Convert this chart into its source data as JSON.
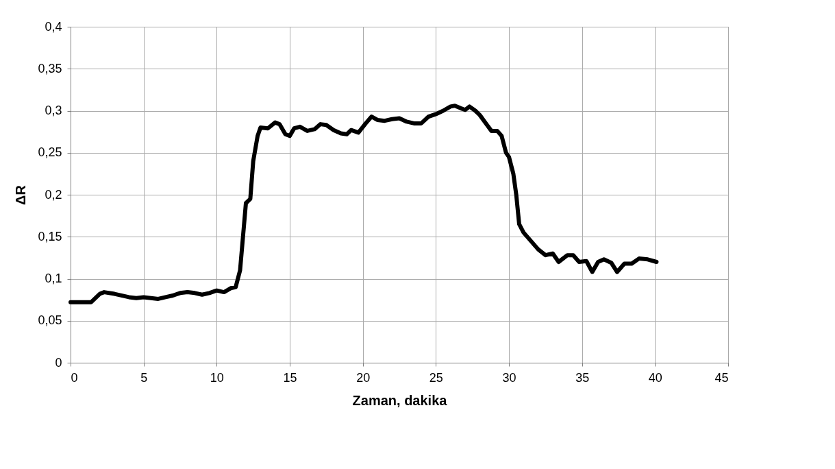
{
  "chart_data": {
    "type": "line",
    "xlabel": "Zaman, dakika",
    "ylabel": "ΔR",
    "x": [
      0,
      1.4,
      2,
      2.3,
      3,
      4,
      4.5,
      5,
      5.5,
      6,
      6.5,
      7,
      7.5,
      8,
      8.5,
      9,
      9.5,
      10,
      10.5,
      11,
      11.3,
      11.6,
      11.8,
      12,
      12.3,
      12.5,
      12.8,
      13,
      13.5,
      14,
      14.3,
      14.7,
      15,
      15.3,
      15.7,
      16.2,
      16.7,
      17.1,
      17.5,
      18,
      18.5,
      18.9,
      19.2,
      19.7,
      20.2,
      20.6,
      21,
      21.5,
      22,
      22.5,
      23,
      23.5,
      24,
      24.5,
      25,
      25.5,
      26,
      26.3,
      26.7,
      27,
      27.3,
      27.7,
      28,
      28.5,
      28.8,
      29.2,
      29.5,
      29.8,
      30,
      30.3,
      30.5,
      30.7,
      31,
      31.5,
      32,
      32.5,
      33,
      33.4,
      34,
      34.4,
      34.8,
      35.3,
      35.7,
      36.1,
      36.5,
      37,
      37.4,
      37.9,
      38.4,
      38.9,
      39.5,
      40.1
    ],
    "series": [
      {
        "color": "#000000",
        "values": [
          0.072,
          0.072,
          0.082,
          0.084,
          0.082,
          0.078,
          0.077,
          0.078,
          0.077,
          0.076,
          0.078,
          0.08,
          0.083,
          0.084,
          0.083,
          0.081,
          0.083,
          0.086,
          0.084,
          0.089,
          0.09,
          0.11,
          0.15,
          0.19,
          0.195,
          0.24,
          0.27,
          0.28,
          0.279,
          0.286,
          0.284,
          0.272,
          0.27,
          0.279,
          0.281,
          0.276,
          0.278,
          0.284,
          0.283,
          0.277,
          0.273,
          0.272,
          0.277,
          0.274,
          0.285,
          0.293,
          0.289,
          0.288,
          0.29,
          0.291,
          0.287,
          0.285,
          0.285,
          0.293,
          0.296,
          0.3,
          0.305,
          0.306,
          0.303,
          0.301,
          0.305,
          0.3,
          0.295,
          0.283,
          0.276,
          0.276,
          0.27,
          0.25,
          0.245,
          0.225,
          0.2,
          0.165,
          0.155,
          0.145,
          0.135,
          0.128,
          0.13,
          0.12,
          0.128,
          0.128,
          0.12,
          0.121,
          0.108,
          0.12,
          0.123,
          0.119,
          0.108,
          0.118,
          0.118,
          0.124,
          0.123,
          0.12
        ]
      }
    ],
    "xlim": [
      0,
      45
    ],
    "xticks": [
      0,
      5,
      10,
      15,
      20,
      25,
      30,
      35,
      40,
      45
    ],
    "ylim": [
      0,
      0.4
    ],
    "yticks": [
      0,
      {
        "value": 0.05,
        "label": "0,05"
      },
      {
        "value": 0.1,
        "label": "0,1"
      },
      {
        "value": 0.15,
        "label": "0,15"
      },
      {
        "value": 0.2,
        "label": "0,2"
      },
      {
        "value": 0.25,
        "label": "0,25"
      },
      {
        "value": 0.3,
        "label": "0,3"
      },
      {
        "value": 0.35,
        "label": "0,35"
      },
      {
        "value": 0.4,
        "label": "0,4"
      }
    ],
    "grid": true,
    "marker": "none",
    "line_style": "solid"
  }
}
